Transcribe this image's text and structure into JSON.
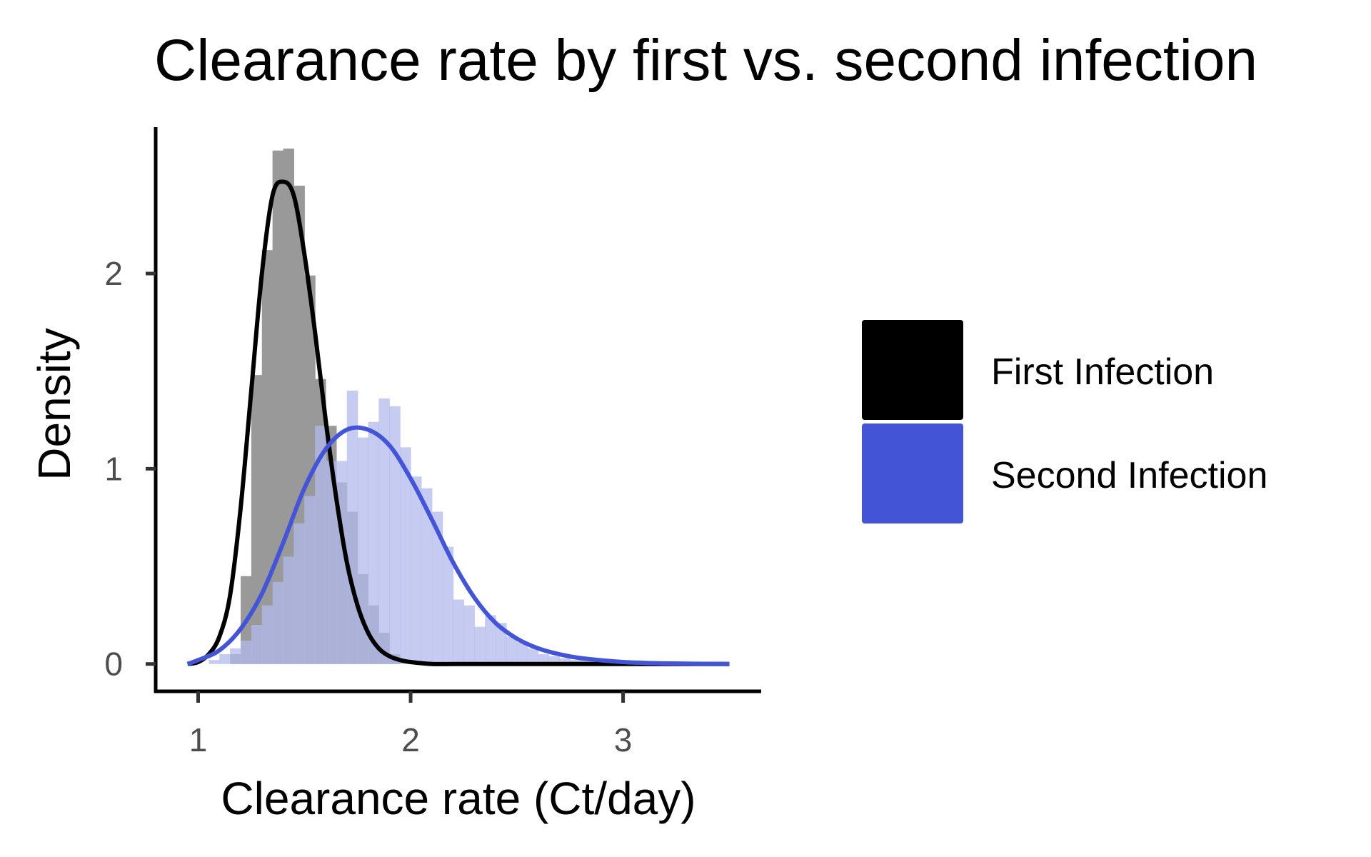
{
  "chart_data": {
    "type": "histogram-density",
    "title": "Clearance rate by first vs. second infection",
    "xlabel": "Clearance rate (Ct/day)",
    "ylabel": "Density",
    "xlim": [
      0.8,
      3.65
    ],
    "ylim": [
      -0.14,
      2.75
    ],
    "x_ticks": [
      1,
      2,
      3
    ],
    "y_ticks": [
      0,
      1,
      2
    ],
    "grid": false,
    "legend_position": "right",
    "bin_width": 0.05,
    "series": [
      {
        "name": "First Infection",
        "color": "#000000",
        "bar_color": "#999999",
        "bins": [
          {
            "x0": 1.15,
            "y": 0.05
          },
          {
            "x0": 1.2,
            "y": 0.45
          },
          {
            "x0": 1.25,
            "y": 1.48
          },
          {
            "x0": 1.3,
            "y": 2.12
          },
          {
            "x0": 1.35,
            "y": 2.63
          },
          {
            "x0": 1.4,
            "y": 2.64
          },
          {
            "x0": 1.45,
            "y": 2.45
          },
          {
            "x0": 1.5,
            "y": 1.99
          },
          {
            "x0": 1.55,
            "y": 1.46
          },
          {
            "x0": 1.6,
            "y": 1.22
          },
          {
            "x0": 1.65,
            "y": 0.93
          },
          {
            "x0": 1.7,
            "y": 0.78
          },
          {
            "x0": 1.75,
            "y": 0.46
          },
          {
            "x0": 1.8,
            "y": 0.3
          },
          {
            "x0": 1.85,
            "y": 0.16
          },
          {
            "x0": 1.9,
            "y": 0.05
          }
        ],
        "density": {
          "x": [
            0.95,
            1.0,
            1.05,
            1.1,
            1.15,
            1.2,
            1.25,
            1.3,
            1.35,
            1.4,
            1.45,
            1.5,
            1.55,
            1.6,
            1.65,
            1.7,
            1.75,
            1.8,
            1.85,
            1.9,
            1.95,
            2.0,
            2.1,
            2.2,
            2.4,
            2.6,
            2.8,
            3.0,
            3.2,
            3.5
          ],
          "y": [
            0.0,
            0.01,
            0.05,
            0.14,
            0.35,
            0.8,
            1.4,
            2.0,
            2.4,
            2.47,
            2.4,
            2.1,
            1.7,
            1.25,
            0.85,
            0.52,
            0.3,
            0.16,
            0.08,
            0.04,
            0.02,
            0.01,
            0.0,
            0.0,
            0.0,
            0.0,
            0.0,
            0.0,
            0.0,
            0.0
          ]
        }
      },
      {
        "name": "Second Infection",
        "color": "#4355d6",
        "bar_color": "#b1b9ec",
        "bins": [
          {
            "x0": 1.05,
            "y": 0.02
          },
          {
            "x0": 1.1,
            "y": 0.05
          },
          {
            "x0": 1.15,
            "y": 0.08
          },
          {
            "x0": 1.2,
            "y": 0.12
          },
          {
            "x0": 1.25,
            "y": 0.2
          },
          {
            "x0": 1.3,
            "y": 0.3
          },
          {
            "x0": 1.35,
            "y": 0.42
          },
          {
            "x0": 1.4,
            "y": 0.55
          },
          {
            "x0": 1.45,
            "y": 0.72
          },
          {
            "x0": 1.5,
            "y": 0.86
          },
          {
            "x0": 1.55,
            "y": 1.22
          },
          {
            "x0": 1.6,
            "y": 1.04
          },
          {
            "x0": 1.65,
            "y": 1.04
          },
          {
            "x0": 1.7,
            "y": 1.4
          },
          {
            "x0": 1.75,
            "y": 1.16
          },
          {
            "x0": 1.8,
            "y": 1.24
          },
          {
            "x0": 1.85,
            "y": 1.36
          },
          {
            "x0": 1.9,
            "y": 1.32
          },
          {
            "x0": 1.95,
            "y": 1.11
          },
          {
            "x0": 2.0,
            "y": 0.96
          },
          {
            "x0": 2.05,
            "y": 0.9
          },
          {
            "x0": 2.1,
            "y": 0.78
          },
          {
            "x0": 2.15,
            "y": 0.6
          },
          {
            "x0": 2.2,
            "y": 0.33
          },
          {
            "x0": 2.25,
            "y": 0.3
          },
          {
            "x0": 2.3,
            "y": 0.19
          },
          {
            "x0": 2.35,
            "y": 0.25
          },
          {
            "x0": 2.4,
            "y": 0.21
          },
          {
            "x0": 2.45,
            "y": 0.14
          },
          {
            "x0": 2.5,
            "y": 0.11
          },
          {
            "x0": 2.55,
            "y": 0.08
          },
          {
            "x0": 2.6,
            "y": 0.05
          },
          {
            "x0": 2.65,
            "y": 0.04
          },
          {
            "x0": 2.7,
            "y": 0.03
          },
          {
            "x0": 2.75,
            "y": 0.02
          },
          {
            "x0": 2.8,
            "y": 0.02
          }
        ],
        "density": {
          "x": [
            0.95,
            1.0,
            1.1,
            1.2,
            1.3,
            1.4,
            1.5,
            1.6,
            1.7,
            1.8,
            1.9,
            2.0,
            2.1,
            2.2,
            2.3,
            2.4,
            2.5,
            2.6,
            2.7,
            2.8,
            3.0,
            3.2,
            3.5
          ],
          "y": [
            0.0,
            0.02,
            0.07,
            0.18,
            0.36,
            0.62,
            0.9,
            1.1,
            1.2,
            1.2,
            1.12,
            0.95,
            0.74,
            0.52,
            0.34,
            0.21,
            0.13,
            0.08,
            0.05,
            0.03,
            0.01,
            0.003,
            0.0
          ]
        }
      }
    ]
  }
}
